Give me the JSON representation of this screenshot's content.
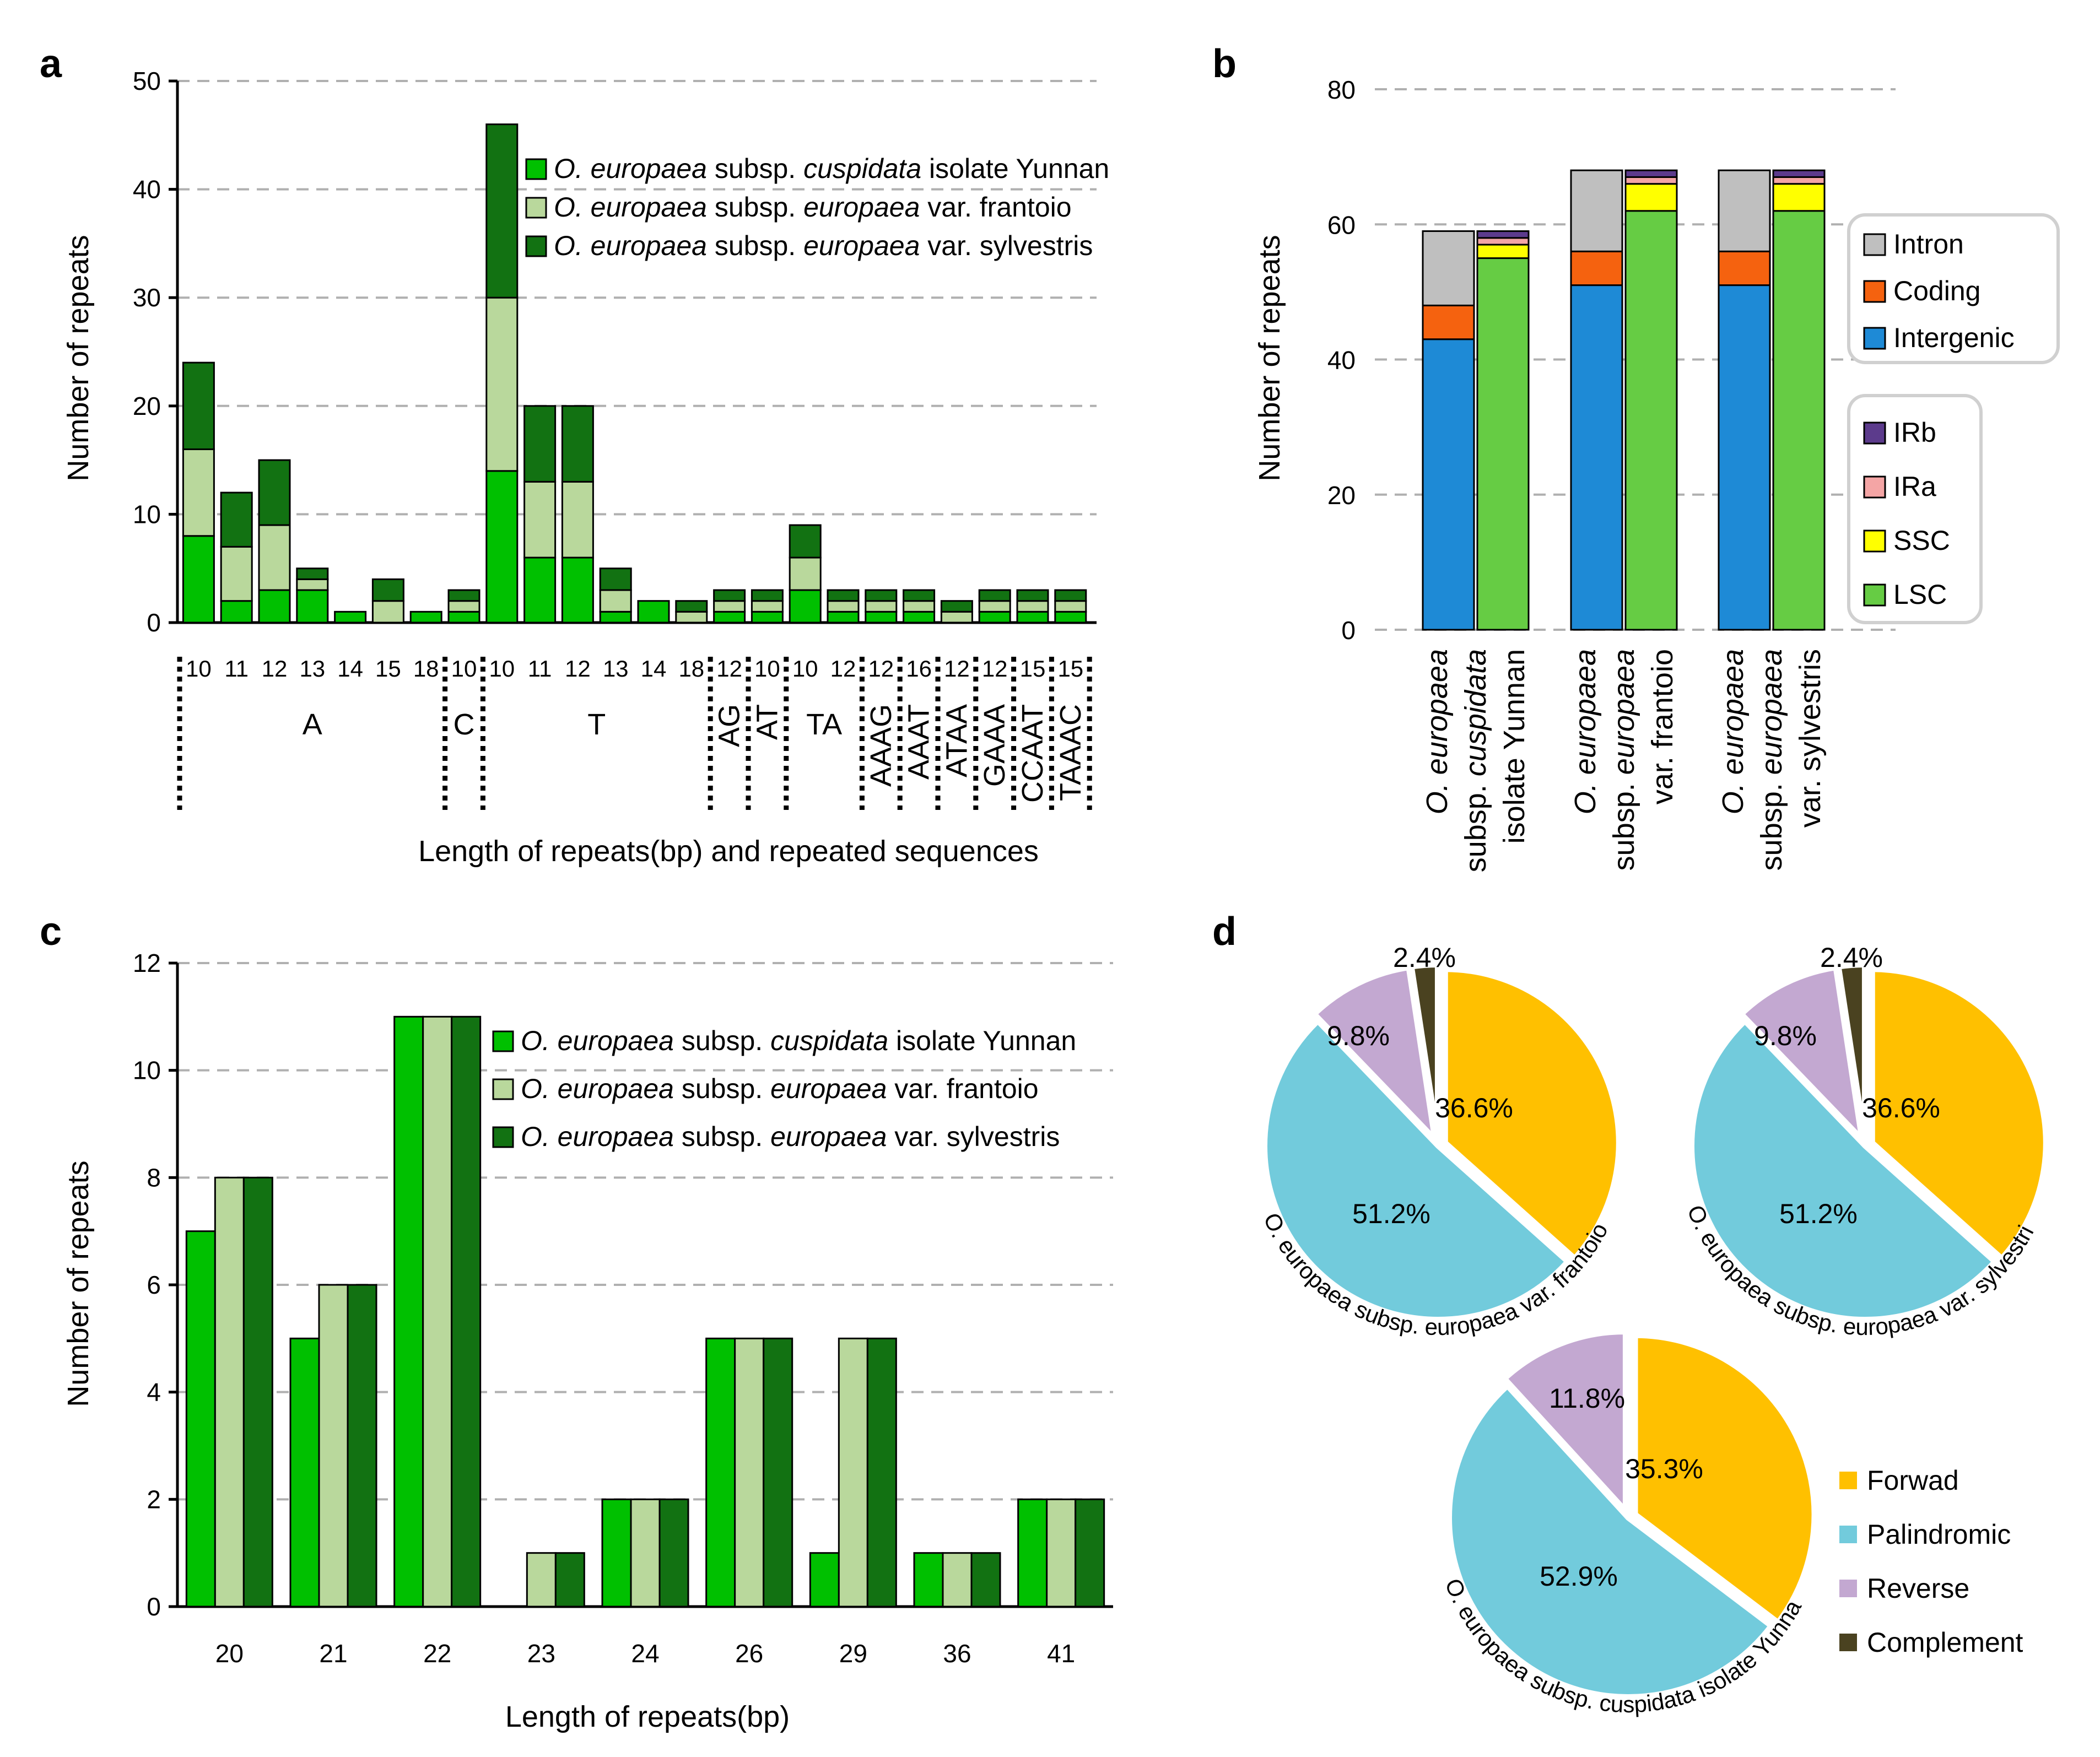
{
  "colors": {
    "cuspidata": "#00c000",
    "frantoio": "#b9d89c",
    "sylvestris": "#127212",
    "intron": "#bfbfbf",
    "coding": "#f5620f",
    "intergenic": "#1e8ad6",
    "irb": "#5c3b8c",
    "ira": "#f4a5a5",
    "ssc": "#ffff00",
    "lsc": "#66cc44",
    "forward": "#ffc000",
    "palindromic": "#72cbdc",
    "reverse": "#c3a8d1",
    "complement": "#4a4220"
  },
  "panel_a": {
    "panel_label": "a",
    "type": "bar",
    "stacked": true,
    "ylabel": "Number of repeats",
    "xlabel": "Length of repeats(bp) and repeated sequences",
    "ylim": [
      0,
      50
    ],
    "yticks": [
      "0",
      "10",
      "20",
      "30",
      "40",
      "50"
    ],
    "legend": [
      {
        "species": "O. europaea",
        "subsp": "subsp.",
        "sub": "cuspidata",
        "rest": "isolate Yunnan"
      },
      {
        "species": "O. europaea",
        "subsp": "subsp.",
        "sub": "europaea",
        "rest": "var. frantoio"
      },
      {
        "species": "O. europaea",
        "subsp": "subsp.",
        "sub": "europaea",
        "rest": "var. sylvestris"
      }
    ],
    "categories": [
      "10",
      "11",
      "12",
      "13",
      "14",
      "15",
      "18",
      "10",
      "10",
      "11",
      "12",
      "13",
      "14",
      "18",
      "12",
      "10",
      "10",
      "12",
      "12",
      "16",
      "12",
      "12",
      "15",
      "15"
    ],
    "groups": [
      {
        "label": "A",
        "start": 0,
        "end": 6
      },
      {
        "label": "C",
        "start": 7,
        "end": 7
      },
      {
        "label": "T",
        "start": 8,
        "end": 13
      },
      {
        "label": "AG",
        "start": 14,
        "end": 14
      },
      {
        "label": "AT",
        "start": 15,
        "end": 15
      },
      {
        "label": "TA",
        "start": 16,
        "end": 17
      },
      {
        "label": "AAAG",
        "start": 18,
        "end": 18
      },
      {
        "label": "AAAT",
        "start": 19,
        "end": 19
      },
      {
        "label": "ATAA",
        "start": 20,
        "end": 20
      },
      {
        "label": "GAAA",
        "start": 21,
        "end": 21
      },
      {
        "label": "CCAAT",
        "start": 22,
        "end": 22
      },
      {
        "label": "TAAAC",
        "start": 23,
        "end": 23
      }
    ],
    "series": [
      {
        "name": "cuspidata isolate Yunnan",
        "values": [
          8,
          2,
          3,
          3,
          1,
          0,
          1,
          1,
          14,
          6,
          6,
          1,
          2,
          0,
          1,
          1,
          3,
          1,
          1,
          1,
          0,
          1,
          1,
          1
        ]
      },
      {
        "name": "europaea var. frantoio",
        "values": [
          8,
          5,
          6,
          1,
          0,
          2,
          0,
          1,
          16,
          7,
          7,
          2,
          0,
          1,
          1,
          1,
          3,
          1,
          1,
          1,
          1,
          1,
          1,
          1
        ]
      },
      {
        "name": "europaea var. sylvestris",
        "values": [
          8,
          5,
          6,
          1,
          0,
          2,
          0,
          1,
          16,
          7,
          7,
          2,
          0,
          1,
          1,
          1,
          3,
          1,
          1,
          1,
          1,
          1,
          1,
          1
        ]
      }
    ]
  },
  "panel_b": {
    "panel_label": "b",
    "type": "bar",
    "stacked": true,
    "ylabel": "Number of repeats",
    "ylim": [
      0,
      80
    ],
    "yticks": [
      "0",
      "20",
      "40",
      "60",
      "80"
    ],
    "groups": [
      {
        "line1": "O. europaea",
        "line2a": "subsp.",
        "line2b": "cuspidata",
        "line3": "isolate Yunnan"
      },
      {
        "line1": "O. europaea",
        "line2a": "subsp.",
        "line2b": "europaea",
        "line3": "var. frantoio"
      },
      {
        "line1": "O. europaea",
        "line2a": "subsp.",
        "line2b": "europaea",
        "line3": "var. sylvestris"
      }
    ],
    "location_series": [
      {
        "name": "Intergenic",
        "values": [
          43,
          51,
          51
        ]
      },
      {
        "name": "Coding",
        "values": [
          5,
          5,
          5
        ]
      },
      {
        "name": "Intron",
        "values": [
          11,
          12,
          12
        ]
      }
    ],
    "region_series": [
      {
        "name": "LSC",
        "values": [
          55,
          62,
          62
        ]
      },
      {
        "name": "SSC",
        "values": [
          2,
          4,
          4
        ]
      },
      {
        "name": "IRa",
        "values": [
          1,
          1,
          1
        ]
      },
      {
        "name": "IRb",
        "values": [
          1,
          1,
          1
        ]
      }
    ],
    "legend1": [
      "Intron",
      "Coding",
      "Intergenic"
    ],
    "legend2": [
      "IRb",
      "IRa",
      "SSC",
      "LSC"
    ]
  },
  "panel_c": {
    "panel_label": "c",
    "type": "bar",
    "stacked": false,
    "ylabel": "Number of repeats",
    "xlabel": "Length of repeats(bp)",
    "ylim": [
      0,
      12
    ],
    "yticks": [
      "0",
      "2",
      "4",
      "6",
      "8",
      "10",
      "12"
    ],
    "categories": [
      "20",
      "21",
      "22",
      "23",
      "24",
      "26",
      "29",
      "36",
      "41"
    ],
    "legend": [
      {
        "species": "O. europaea",
        "subsp": "subsp.",
        "sub": "cuspidata",
        "rest": "isolate Yunnan"
      },
      {
        "species": "O. europaea",
        "subsp": "subsp.",
        "sub": "europaea",
        "rest": "var. frantoio"
      },
      {
        "species": "O. europaea",
        "subsp": "subsp.",
        "sub": "europaea",
        "rest": "var. sylvestris"
      }
    ],
    "series": [
      {
        "name": "cuspidata isolate Yunnan",
        "values": [
          7,
          5,
          11,
          0,
          2,
          5,
          1,
          1,
          2
        ]
      },
      {
        "name": "europaea var. frantoio",
        "values": [
          8,
          6,
          11,
          1,
          2,
          5,
          5,
          1,
          2
        ]
      },
      {
        "name": "europaea var. sylvestris",
        "values": [
          8,
          6,
          11,
          1,
          2,
          5,
          5,
          1,
          2
        ]
      }
    ]
  },
  "panel_d": {
    "panel_label": "d",
    "type": "pie",
    "pies": [
      {
        "name": "O. europaea subsp. europaea var. frantoio",
        "values": [
          36.6,
          51.2,
          9.8,
          2.4
        ],
        "labels": [
          "36.6%",
          "51.2%",
          "9.8%",
          "2.4%"
        ]
      },
      {
        "name": "O. europaea subsp. europaea var. sylvestris",
        "values": [
          36.6,
          51.2,
          9.8,
          2.4
        ],
        "labels": [
          "36.6%",
          "51.2%",
          "9.8%",
          "2.4%"
        ]
      },
      {
        "name": "O. europaea subsp. cuspidata isolate Yunnan",
        "values": [
          35.3,
          52.9,
          11.8,
          0
        ],
        "labels": [
          "35.3%",
          "52.9%",
          "11.8%",
          ""
        ]
      }
    ],
    "legend": [
      "Forwad",
      "Palindromic",
      "Reverse",
      "Complement"
    ]
  }
}
